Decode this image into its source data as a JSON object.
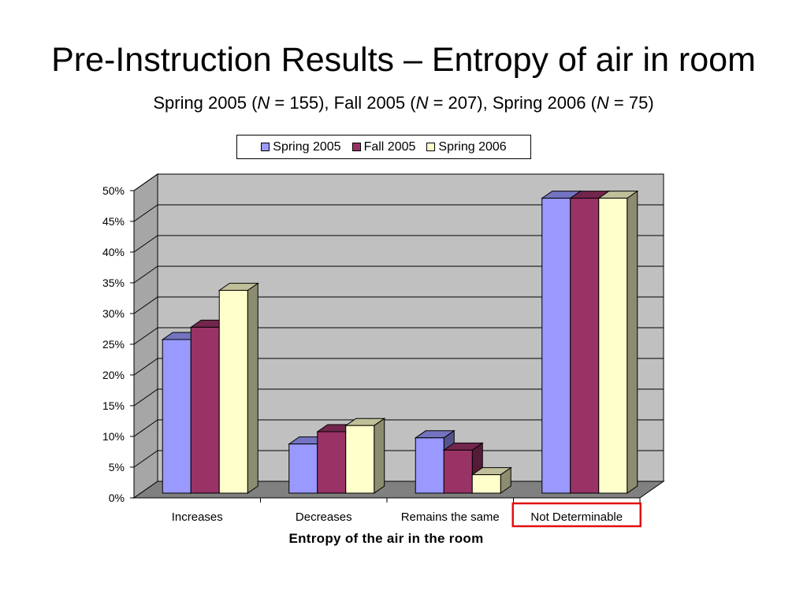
{
  "title": "Pre-Instruction Results – Entropy of air in room",
  "subtitle": {
    "part1": "Spring 2005 (",
    "n1_label": "N",
    "part2": " = 155), Fall 2005 (",
    "n2_label": "N",
    "part3": " = 207), Spring 2006 (",
    "n3_label": "N",
    "part4": " = 75)"
  },
  "highlight_color": "#e01010",
  "chart_data": {
    "type": "bar",
    "categories": [
      "Increases",
      "Decreases",
      "Remains the same",
      "Not Determinable"
    ],
    "highlighted_category": "Not Determinable",
    "series": [
      {
        "name": "Spring 2005",
        "color": "#9999ff",
        "values": [
          25,
          8,
          9,
          48
        ]
      },
      {
        "name": "Fall 2005",
        "color": "#993366",
        "values": [
          27,
          10,
          7,
          48
        ]
      },
      {
        "name": "Spring 2006",
        "color": "#ffffcc",
        "values": [
          33,
          11,
          3,
          48
        ]
      }
    ],
    "title": "",
    "xlabel": "Entropy of the air in the room",
    "ylabel": "",
    "ylim": [
      0,
      50
    ],
    "yticks": [
      "0%",
      "5%",
      "10%",
      "15%",
      "20%",
      "25%",
      "30%",
      "35%",
      "40%",
      "45%",
      "50%"
    ],
    "grid": true,
    "legend": "top",
    "style": "3d-clustered-column"
  }
}
